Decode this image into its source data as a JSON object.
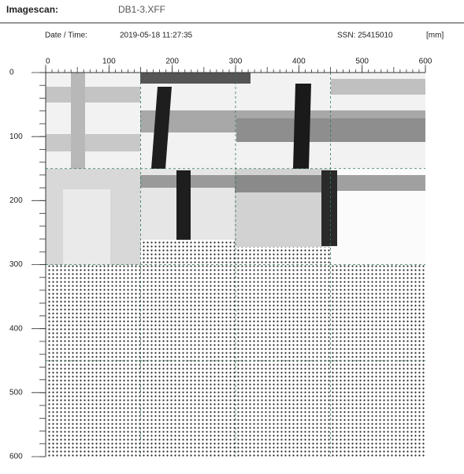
{
  "header": {
    "title": "Imagescan:",
    "file": "DB1-3.XFF"
  },
  "info": {
    "date_label": "Date / Time:",
    "date": "2019-05-18 11:27:35",
    "ssn": "SSN: 25415010",
    "unit": "[mm]"
  },
  "axes": {
    "x_ticks": [
      0,
      100,
      200,
      300,
      400,
      500,
      600
    ],
    "y_ticks": [
      0,
      100,
      200,
      300,
      400,
      500,
      600
    ]
  }
}
